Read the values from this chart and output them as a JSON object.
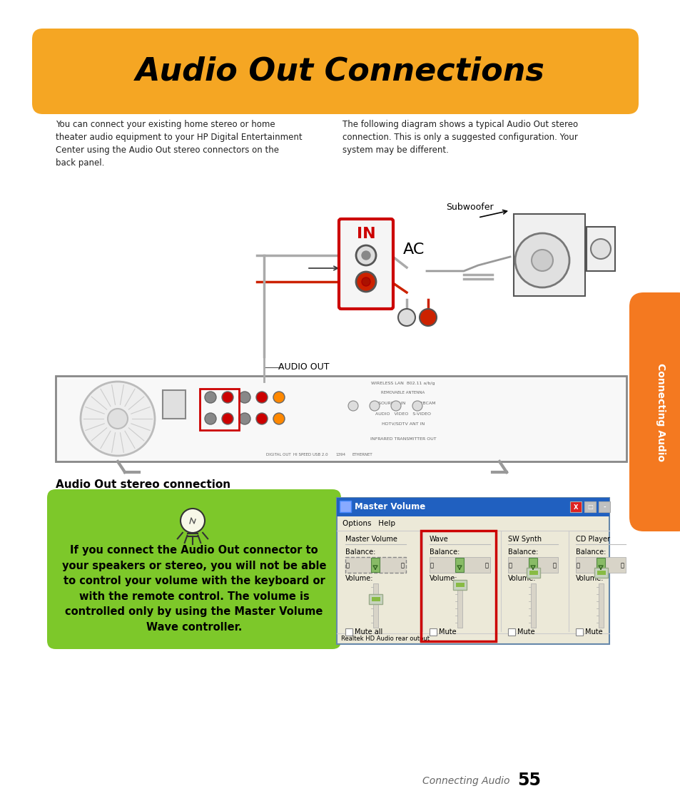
{
  "bg_color": "#ffffff",
  "title_text": "Audio Out Connections",
  "title_bg": "#F5A623",
  "title_color": "#000000",
  "body_text_left": "You can connect your existing home stereo or home\ntheater audio equipment to your HP Digital Entertainment\nCenter using the Audio Out stereo connectors on the\nback panel.",
  "body_text_right": "The following diagram shows a typical Audio Out stereo\nconnection. This is only a suggested configuration. Your\nsystem may be different.",
  "audio_out_label": "AUDIO OUT",
  "subwoofer_label": "Subwoofer",
  "ac_label": "AC",
  "in_label": "IN",
  "section_header": "Audio Out stereo connection",
  "tip_text": "If you connect the Audio Out connector to\nyour speakers or stereo, you will not be able\nto control your volume with the keyboard or\nwith the remote control. The volume is\ncontrolled only by using the Master Volume\nWave controller.",
  "tip_bg": "#7DC82A",
  "sidebar_text": "Connecting Audio",
  "sidebar_bg": "#F47920",
  "footer_italic": "Connecting Audio",
  "footer_num": "55",
  "in_box_color": "#CC0000",
  "wave_highlight": "#CC0000"
}
